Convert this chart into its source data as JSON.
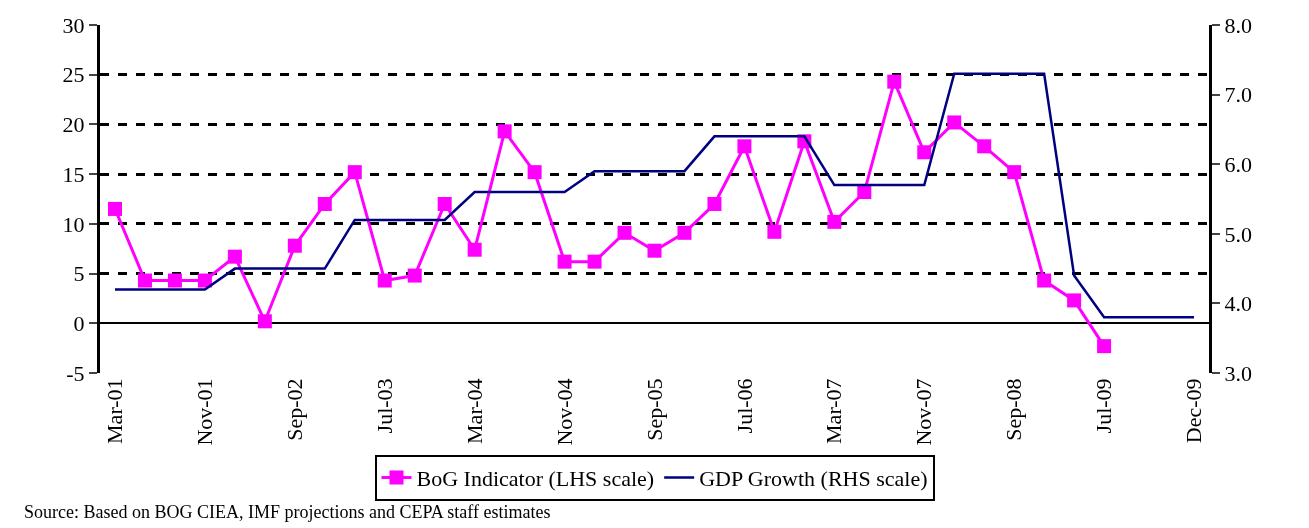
{
  "chart_data": {
    "type": "line",
    "categories": [
      "Mar-01",
      null,
      null,
      "Nov-01",
      null,
      null,
      "Sep-02",
      null,
      null,
      "Jul-03",
      null,
      null,
      "Mar-04",
      null,
      null,
      "Nov-04",
      null,
      null,
      "Sep-05",
      null,
      null,
      "Jul-06",
      null,
      null,
      "Mar-07",
      null,
      null,
      "Nov-07",
      null,
      null,
      "Sep-08",
      null,
      null,
      "Jul-09",
      null,
      null,
      "Dec-09"
    ],
    "series": [
      {
        "name": "BoG Indicator (LHS scale)",
        "color": "#ff00ff",
        "marker": "square",
        "values": [
          11.5,
          4.3,
          4.3,
          4.3,
          6.7,
          0.2,
          7.8,
          12.0,
          15.2,
          4.3,
          4.8,
          12.0,
          7.4,
          19.3,
          15.2,
          6.2,
          6.2,
          9.1,
          7.3,
          9.1,
          12.0,
          17.8,
          9.2,
          18.3,
          10.2,
          13.2,
          24.3,
          17.2,
          20.2,
          17.8,
          15.2,
          4.3,
          2.3,
          -2.3,
          null,
          null,
          null
        ]
      },
      {
        "name": "GDP Growth (RHS scale)",
        "color": "#000080",
        "marker": "none",
        "axis": "y2",
        "values": [
          4.2,
          4.2,
          4.2,
          4.2,
          4.5,
          4.5,
          4.5,
          4.5,
          5.2,
          5.2,
          5.2,
          5.2,
          5.6,
          5.6,
          5.6,
          5.6,
          5.9,
          5.9,
          5.9,
          5.9,
          6.4,
          6.4,
          6.4,
          6.4,
          5.7,
          5.7,
          5.7,
          5.7,
          7.3,
          7.3,
          7.3,
          7.3,
          4.4,
          3.8,
          3.8,
          3.8,
          3.8
        ]
      }
    ],
    "ylim": [
      -5,
      30
    ],
    "yticks": [
      -5,
      0,
      5,
      10,
      15,
      20,
      25,
      30
    ],
    "y2lim": [
      3.0,
      8.0
    ],
    "y2ticks": [
      {
        "value": 3,
        "label": "3.0"
      },
      {
        "value": 4,
        "label": "4.0"
      },
      {
        "value": 5,
        "label": "5.0"
      },
      {
        "value": 6,
        "label": "6.0"
      },
      {
        "value": 7,
        "label": "7.0"
      },
      {
        "value": 8,
        "label": "8.0"
      }
    ],
    "grid": "y",
    "legend": "bottom",
    "annotations": [
      "Source: Based on BOG CIEA, IMF projections and CEPA staff estimates"
    ]
  }
}
